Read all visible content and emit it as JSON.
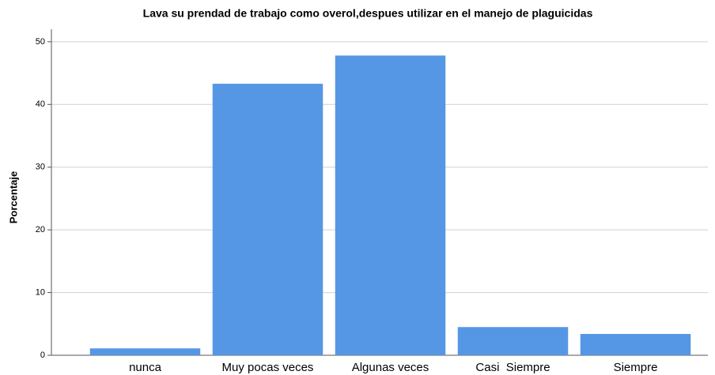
{
  "chart_data": {
    "type": "bar",
    "title": "Lava su prendad de trabajo como overol,despues utilizar en el manejo de plaguicidas",
    "y_label": "Porcentaje",
    "categories": [
      "nunca",
      "Muy pocas veces",
      "Algunas veces",
      "Casi  Siempre",
      "Siempre"
    ],
    "values": [
      1.1,
      43.3,
      47.8,
      4.5,
      3.4
    ],
    "color": "#5597e4",
    "ylim": [
      0,
      52
    ],
    "yticks": [
      0,
      10,
      20,
      30,
      40,
      50
    ],
    "grid": true
  }
}
